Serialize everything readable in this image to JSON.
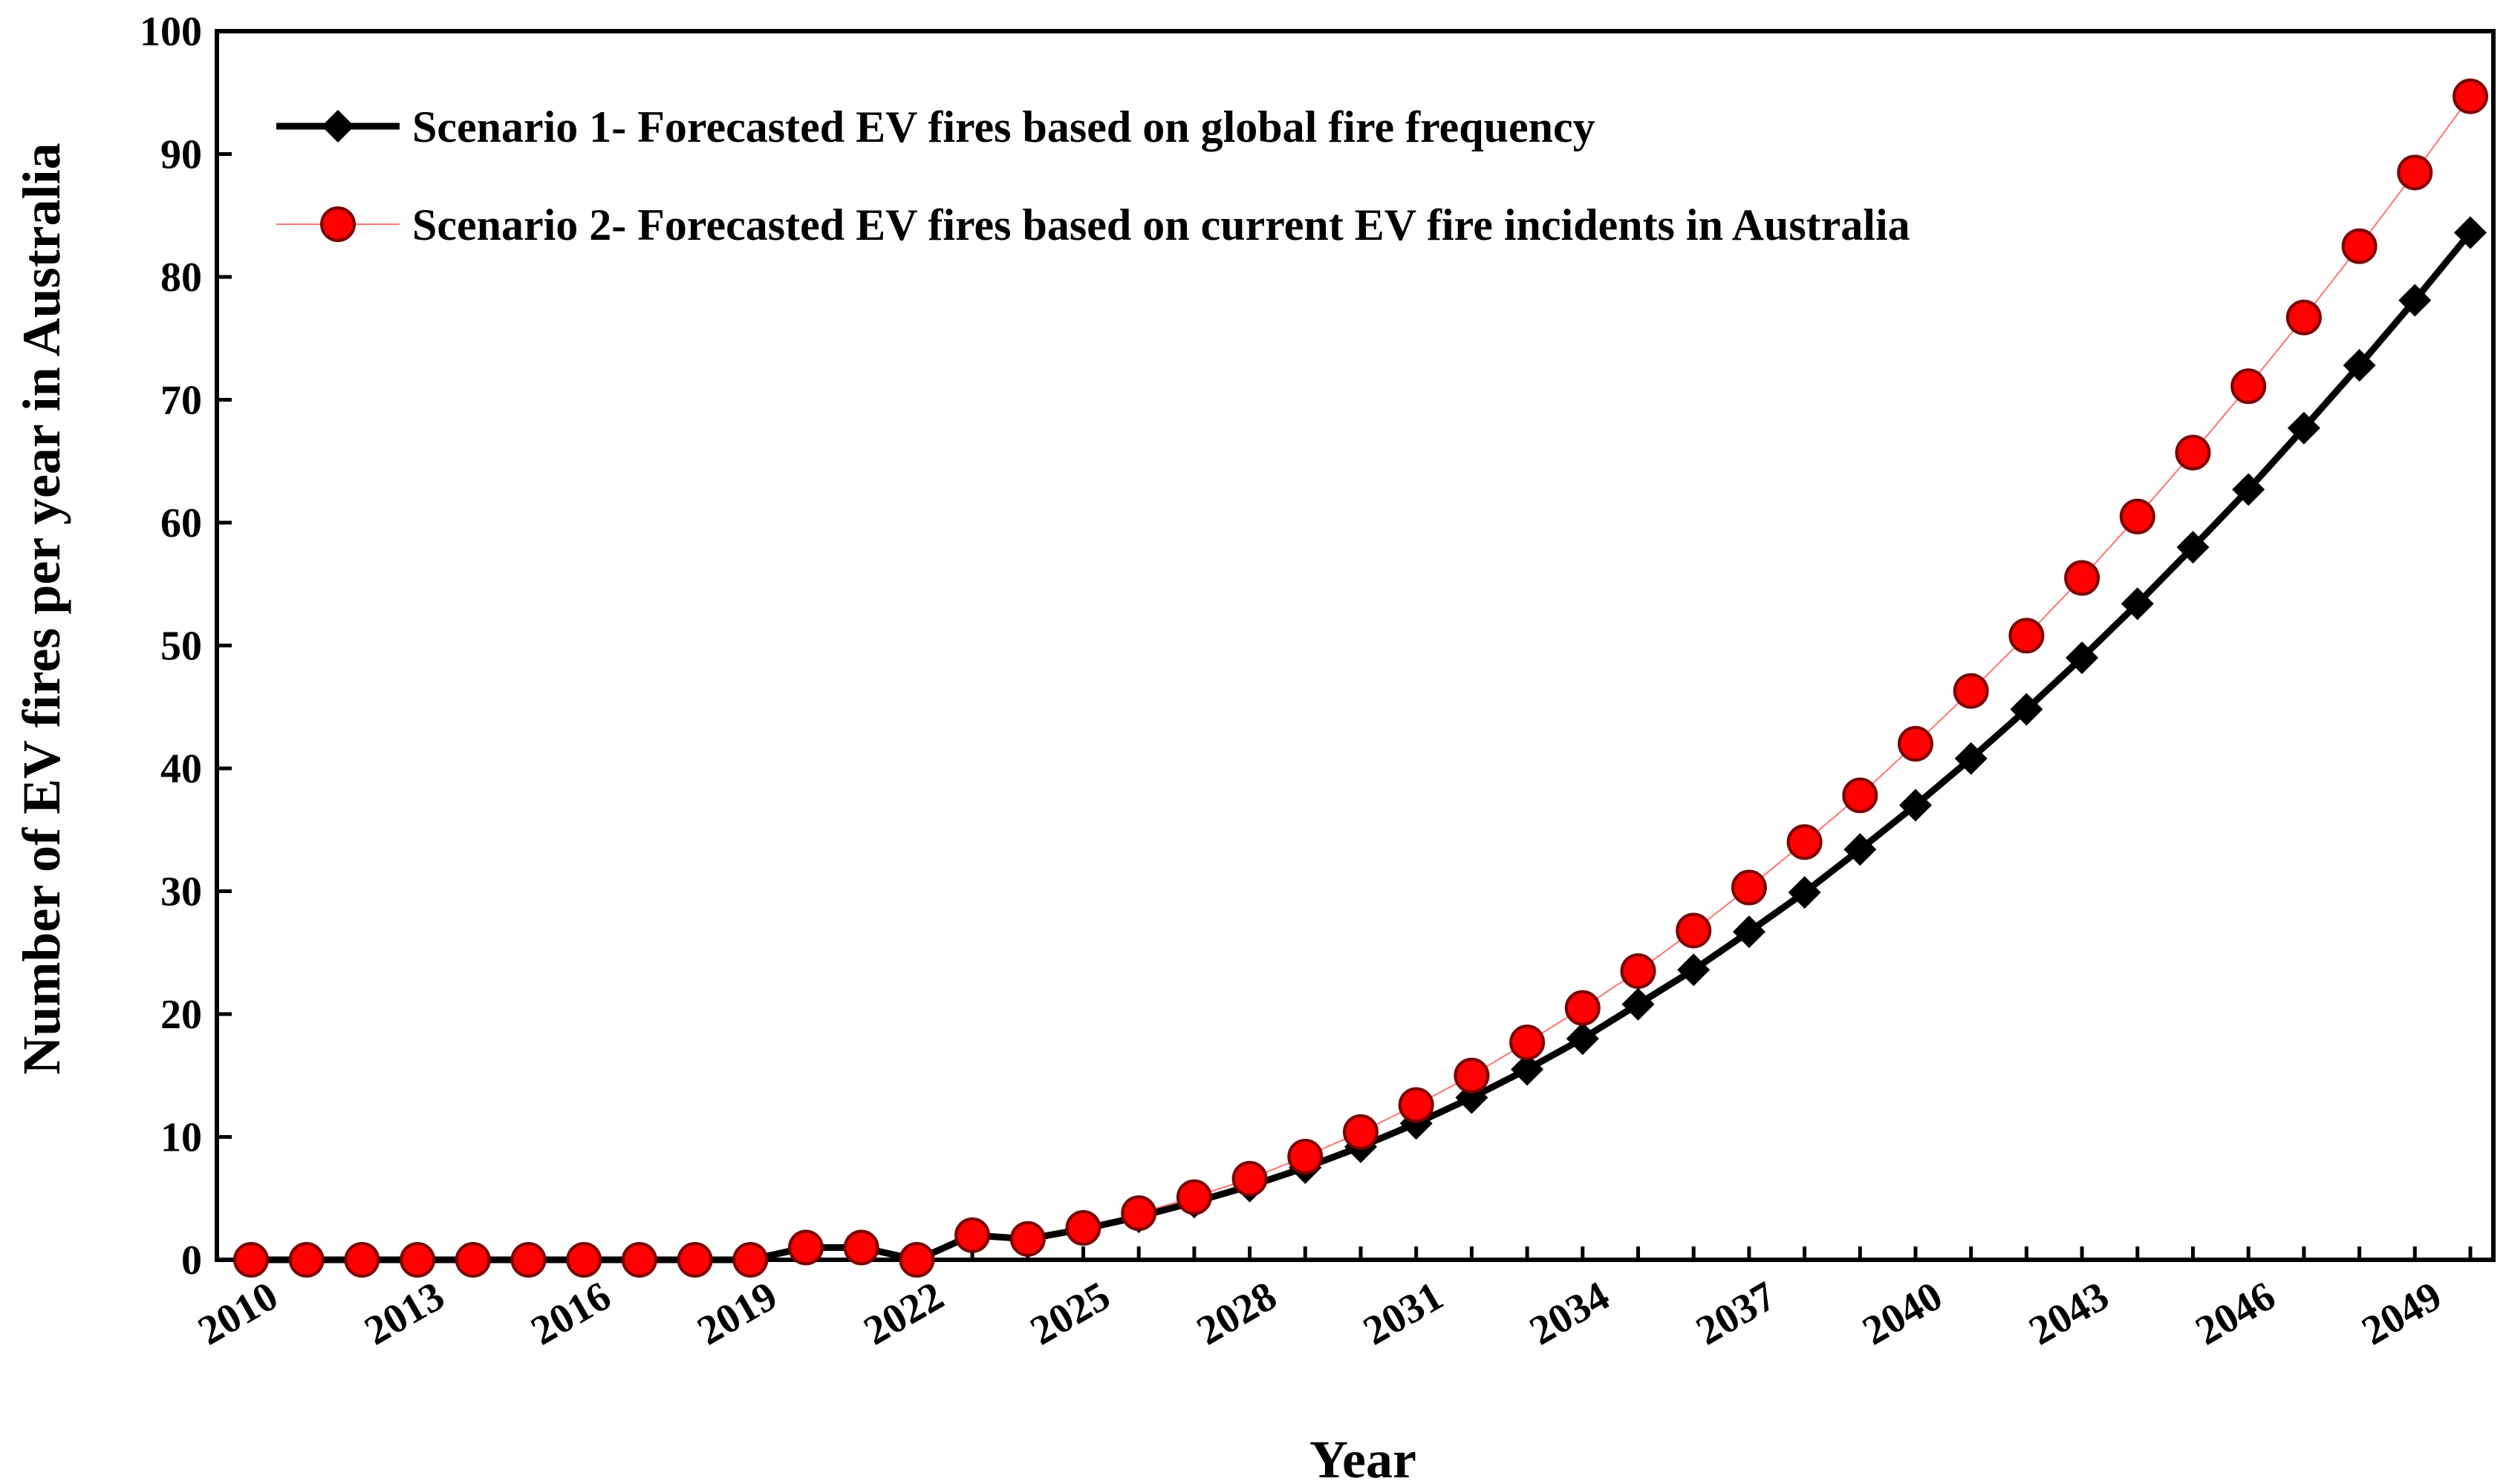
{
  "chart_data": {
    "type": "line",
    "title": "",
    "xlabel": "Year",
    "ylabel": "Number of EV fires per year in Australia",
    "xlim": [
      2010,
      2050
    ],
    "ylim": [
      0,
      100
    ],
    "yticks": [
      0,
      10,
      20,
      30,
      40,
      50,
      60,
      70,
      80,
      90,
      100
    ],
    "xtick_labels": [
      "2010",
      "2013",
      "2016",
      "2019",
      "2022",
      "2025",
      "2028",
      "2031",
      "2034",
      "2037",
      "2040",
      "2043",
      "2046",
      "2049"
    ],
    "xtick_values": [
      2010,
      2013,
      2016,
      2019,
      2022,
      2025,
      2028,
      2031,
      2034,
      2037,
      2040,
      2043,
      2046,
      2049
    ],
    "grid": false,
    "legend_position": "top-left",
    "x": [
      2010,
      2011,
      2012,
      2013,
      2014,
      2015,
      2016,
      2017,
      2018,
      2019,
      2020,
      2021,
      2022,
      2023,
      2024,
      2025,
      2026,
      2027,
      2028,
      2029,
      2030,
      2031,
      2032,
      2033,
      2034,
      2035,
      2036,
      2037,
      2038,
      2039,
      2040,
      2041,
      2042,
      2043,
      2044,
      2045,
      2046,
      2047,
      2048,
      2049,
      2050
    ],
    "series": [
      {
        "name": "Scenario 1- Forecasted EV fires based on global fire frequency",
        "color": "#000000",
        "marker": "diamond",
        "values": [
          0,
          0,
          0,
          0,
          0,
          0,
          0,
          0,
          0,
          0,
          1,
          1,
          0,
          2,
          1.7,
          2.5,
          3.5,
          4.7,
          6,
          7.5,
          9.2,
          11.1,
          13.2,
          15.5,
          18,
          20.8,
          23.6,
          26.7,
          29.9,
          33.4,
          37,
          40.8,
          44.8,
          49,
          53.4,
          58,
          62.7,
          67.7,
          72.8,
          78.1,
          83.6
        ]
      },
      {
        "name": "Scenario 2- Forecasted EV fires based on current EV fire incidents in Australia",
        "color": "#ff0000",
        "marker": "circle",
        "values": [
          0,
          0,
          0,
          0,
          0,
          0,
          0,
          0,
          0,
          0,
          1,
          1,
          0,
          2,
          1.7,
          2.6,
          3.8,
          5.1,
          6.6,
          8.4,
          10.4,
          12.6,
          15,
          17.7,
          20.5,
          23.5,
          26.8,
          30.3,
          34,
          37.8,
          42,
          46.3,
          50.8,
          55.5,
          60.5,
          65.7,
          71.1,
          76.7,
          82.5,
          88.5,
          94.7
        ]
      }
    ]
  }
}
